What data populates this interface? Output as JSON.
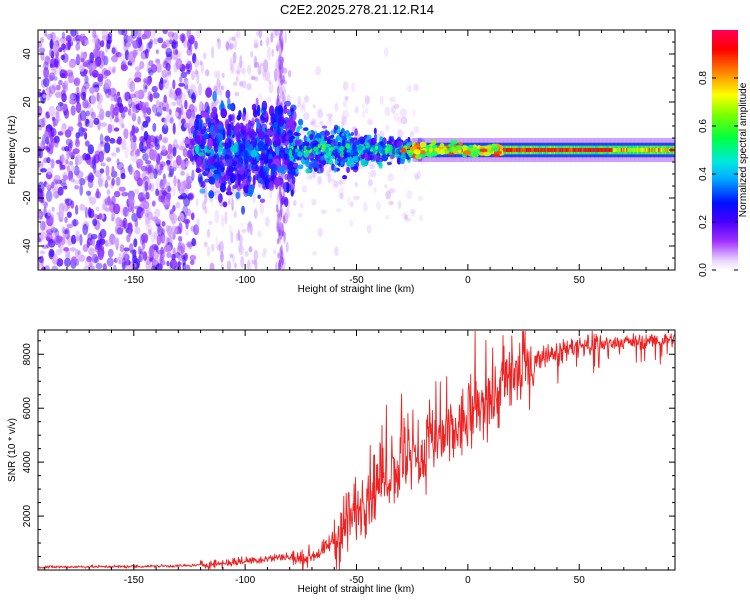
{
  "title": "C2E2.2025.278.21.12.R14",
  "chart_data": [
    {
      "type": "heatmap",
      "xlabel": "Height of straight line (km)",
      "ylabel": "Frequency (Hz)",
      "xlim": [
        -193,
        93
      ],
      "ylim": [
        -50,
        50
      ],
      "xticks": [
        -150,
        -100,
        -50,
        0,
        50
      ],
      "yticks": [
        -40,
        -20,
        0,
        20,
        40
      ],
      "description_of_content": "Sparse violet noise below -120 km, broadband violet-blue energy from -120 to -80 km, a narrowing blue/green band around 0 Hz from -80 to 0 km, and a strong narrow red/green carrier line at 0 Hz from about -25 km upward.",
      "colorbar": {
        "label": "Normalized spectral amplitude",
        "range": [
          0,
          1
        ],
        "ticks": [
          0.0,
          0.2,
          0.4,
          0.6,
          0.8
        ],
        "colors": [
          "#ffffff",
          "#d9b3ff",
          "#9b30ff",
          "#3f00ff",
          "#0000ff",
          "#00c8ff",
          "#00ff66",
          "#aaff00",
          "#ffff00",
          "#ff8800",
          "#ff0000",
          "#ff0066"
        ]
      }
    },
    {
      "type": "line",
      "xlabel": "Height of straight line (km)",
      "ylabel": "SNR (10 * v/v)",
      "xlim": [
        -193,
        93
      ],
      "ylim": [
        0,
        8900
      ],
      "xticks": [
        -150,
        -100,
        -50,
        0,
        50
      ],
      "yticks": [
        2000,
        4000,
        6000,
        8000
      ],
      "color": "#ee2222",
      "profile": {
        "x": [
          -193,
          -150,
          -125,
          -110,
          -90,
          -82,
          -75,
          -65,
          -55,
          -45,
          -35,
          -25,
          -15,
          -5,
          5,
          15,
          25,
          35,
          50,
          65,
          80,
          93
        ],
        "y": [
          110,
          130,
          160,
          250,
          420,
          500,
          380,
          700,
          1600,
          2900,
          3600,
          4100,
          4600,
          5200,
          5900,
          6700,
          7500,
          8000,
          8300,
          8450,
          8500,
          8550
        ]
      }
    }
  ]
}
